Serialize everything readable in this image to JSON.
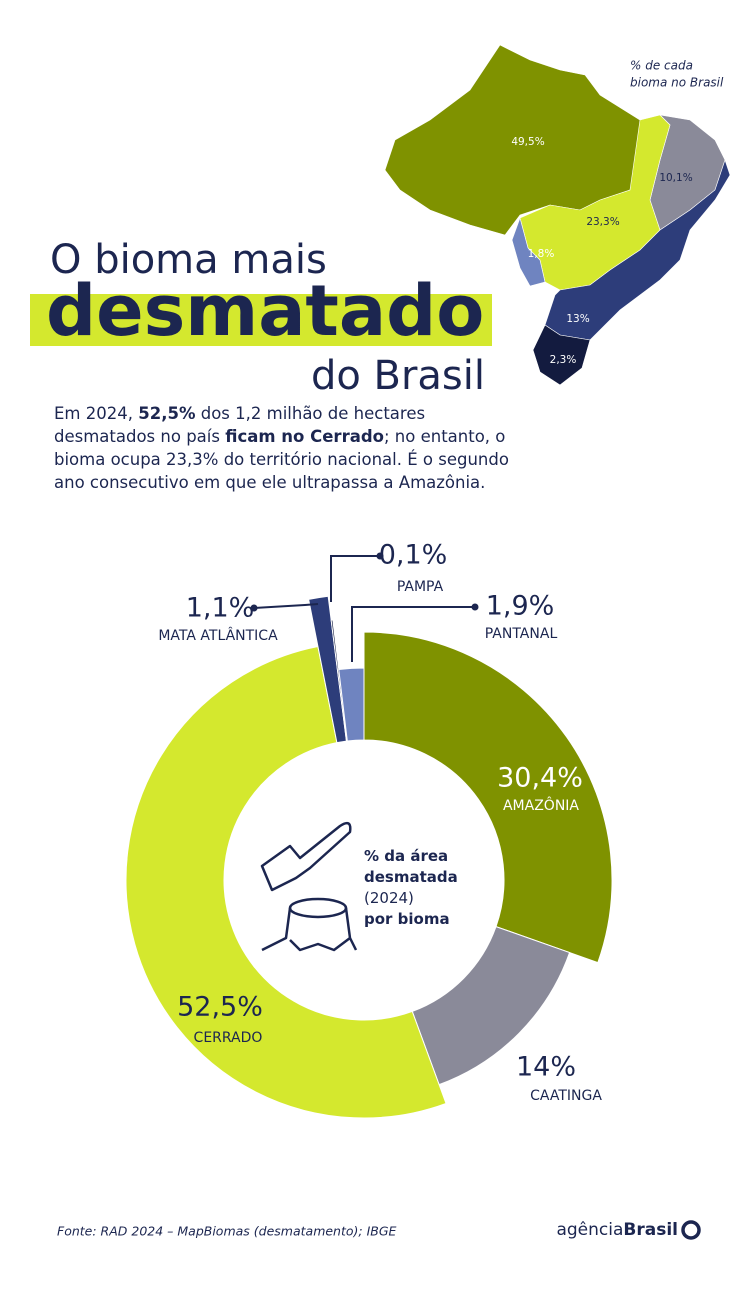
{
  "title": {
    "line1": "O bioma mais",
    "line2": "desmatado",
    "line3": "do Brasil"
  },
  "description": [
    {
      "text": "Em 2024, "
    },
    {
      "text": "52,5%",
      "bold": true
    },
    {
      "text": " dos 1,2 milhão de hectares desmatados no país "
    },
    {
      "text": "ficam no Cerrado",
      "bold": true
    },
    {
      "text": "; no entanto, o bioma ocupa 23,3% do território nacional. É o segundo ano consecutivo em que ele ultrapassa a Amazônia."
    }
  ],
  "map": {
    "legend": [
      "% de cada",
      "bioma no Brasil"
    ],
    "values": [
      49.5,
      10.1,
      23.3,
      1.8,
      13,
      2.3
    ],
    "value_labels": [
      "49,5%",
      "10,1%",
      "23,3%",
      "1,8%",
      "13%",
      "2,3%"
    ],
    "colors": [
      "#7f9200",
      "#8a8a99",
      "#d4e82e",
      "#6f84c0",
      "#2d3d7a",
      "#131b3f"
    ]
  },
  "chart_data": {
    "type": "donut",
    "categories": [
      "AMAZÔNIA",
      "CAATINGA",
      "CERRADO",
      "MATA ATLÂNTICA",
      "PAMPA",
      "PANTANAL"
    ],
    "values": [
      30.4,
      14,
      52.5,
      1.1,
      0.1,
      1.9
    ],
    "value_labels": [
      "30,4%",
      "14%",
      "52,5%",
      "1,1%",
      "0,1%",
      "1,9%"
    ],
    "colors": [
      "#7f9200",
      "#8a8a99",
      "#d4e82e",
      "#2d3d7a",
      "#131b3f",
      "#6f84c0"
    ],
    "center_text": [
      {
        "text": "% da área",
        "bold": true
      },
      {
        "text": "desmatada",
        "bold": true
      },
      {
        "text": "(2024)"
      },
      {
        "text": "por bioma",
        "bold": true
      }
    ]
  },
  "source": "Fonte: RAD 2024 – MapBiomas (desmatamento); IBGE",
  "logo": {
    "light": "agência",
    "bold": "Brasil"
  }
}
